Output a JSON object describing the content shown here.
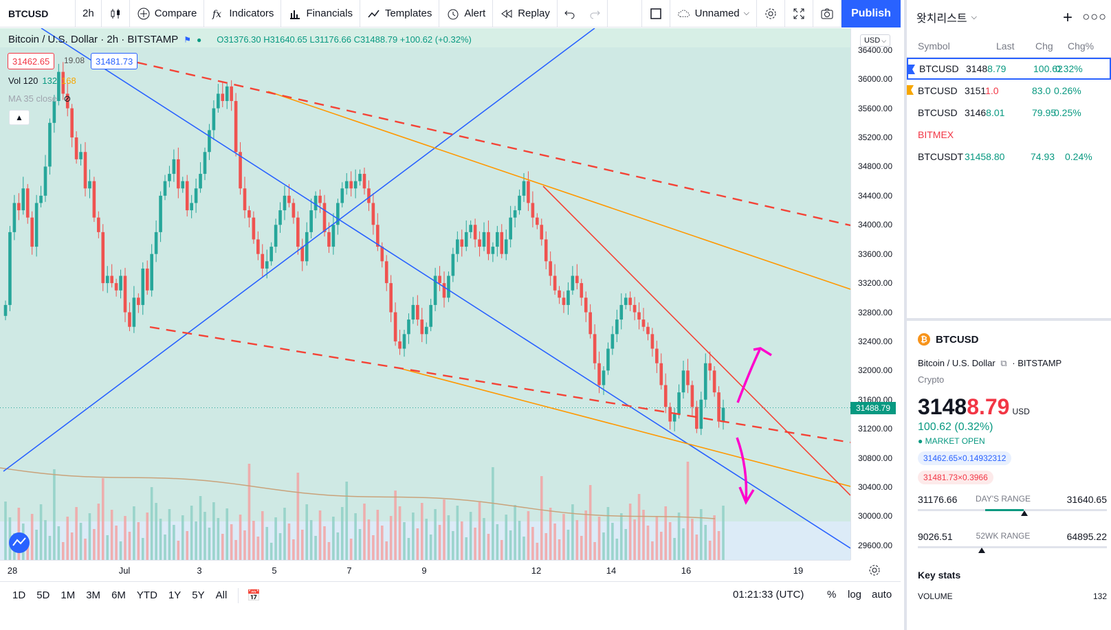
{
  "toolbar": {
    "symbol": "BTCUSD",
    "interval": "2h",
    "compare": "Compare",
    "indicators": "Indicators",
    "financials": "Financials",
    "templates": "Templates",
    "alert": "Alert",
    "replay": "Replay",
    "layout_name": "Unnamed",
    "publish": "Publish"
  },
  "legend": {
    "title": "Bitcoin / U.S. Dollar · 2h · BITSTAMP",
    "ohlc": "O31376.30 H31640.65 L31176.66 C31488.79 +100.62 (+0.32%)",
    "bid": "31462.65",
    "spread": "19.08",
    "ask": "31481.73",
    "vol_prefix": "Vol 120",
    "vol_val2": "132",
    "vol_val3": "168",
    "ma": "MA 35 close"
  },
  "price_axis": {
    "currency": "USD",
    "current_price": "31488.79",
    "ticks": [
      "36400.00",
      "36000.00",
      "35600.00",
      "35200.00",
      "34800.00",
      "34400.00",
      "34000.00",
      "33600.00",
      "33200.00",
      "32800.00",
      "32400.00",
      "32000.00",
      "31600.00",
      "31200.00",
      "30800.00",
      "30400.00",
      "30000.00",
      "29600.00"
    ]
  },
  "time_axis": {
    "ticks": [
      "28",
      "Jul",
      "3",
      "5",
      "7",
      "9",
      "12",
      "14",
      "16",
      "19"
    ]
  },
  "bottombar": {
    "ranges": [
      "1D",
      "5D",
      "1M",
      "3M",
      "6M",
      "YTD",
      "1Y",
      "5Y",
      "All"
    ],
    "clock": "01:21:33 (UTC)",
    "percent": "%",
    "log": "log",
    "auto": "auto"
  },
  "watchlist": {
    "title": "왓치리스트",
    "columns": {
      "symbol": "Symbol",
      "last": "Last",
      "chg": "Chg",
      "chgp": "Chg%"
    },
    "rows": [
      {
        "symbol": "BTCUSD",
        "last_a": "3148",
        "last_b": "8.79",
        "chg": "100.62",
        "chgp": "0.32%",
        "flag": "#2962ff"
      },
      {
        "symbol": "BTCUSD",
        "last_a": "3151",
        "last_b": "1.0",
        "chg": "83.0",
        "chgp": "0.26%",
        "flag": "#f7a600"
      },
      {
        "symbol": "BTCUSD",
        "last_a": "3146",
        "last_b": "8.01",
        "chg": "79.95",
        "chgp": "0.25%",
        "flag": ""
      }
    ],
    "section": "BITMEX",
    "row4": {
      "symbol": "BTCUSDT",
      "last": "31458.80",
      "chg": "74.93",
      "chgp": "0.24%"
    }
  },
  "detail": {
    "symbol": "BTCUSD",
    "name": "Bitcoin / U.S. Dollar",
    "exchange": "BITSTAMP",
    "type": "Crypto",
    "price_main": "3148",
    "price_dim": "8.79",
    "currency": "USD",
    "change": "100.62 (0.32%)",
    "market": "MARKET OPEN",
    "bid_chip": "31462.65×0.14932312",
    "ask_chip": "31481.73×0.3966",
    "day_low": "31176.66",
    "day_label": "DAY'S RANGE",
    "day_high": "31640.65",
    "wk_low": "9026.51",
    "wk_label": "52WK RANGE",
    "wk_high": "64895.22",
    "key_stats": "Key stats",
    "volume_label": "VOLUME",
    "volume_value": "132"
  },
  "colors": {
    "up": "#26a69a",
    "down": "#ef5350",
    "blue_line": "#2962ff",
    "orange_line": "#ff9800",
    "red_line": "#f44336",
    "arrow": "#ff00cc",
    "chart_bg": "#cfe9e4"
  },
  "chart_data": {
    "type": "candlestick",
    "note_series": "BTCUSD 2h candles, 28 Jun – 17 Jul (approximate closes)",
    "ylim": [
      29400,
      36700
    ],
    "closes": [
      32900,
      33900,
      34300,
      34200,
      34500,
      34100,
      33700,
      34300,
      34400,
      34800,
      35400,
      35700,
      36100,
      35800,
      35600,
      35200,
      34900,
      35000,
      34500,
      34600,
      34100,
      33900,
      33200,
      33300,
      33200,
      33100,
      33300,
      32800,
      32600,
      33000,
      32900,
      33400,
      33100,
      33600,
      33900,
      34400,
      34600,
      34700,
      34900,
      34500,
      34600,
      34200,
      34300,
      34500,
      34700,
      35000,
      35300,
      35600,
      35800,
      35700,
      35900,
      35700,
      35000,
      34500,
      34200,
      34100,
      33800,
      33600,
      33400,
      33500,
      33700,
      34000,
      34200,
      34400,
      34300,
      34100,
      33700,
      33500,
      33900,
      34200,
      34400,
      34300,
      33900,
      33700,
      34000,
      34300,
      34500,
      34600,
      34500,
      34600,
      34700,
      34500,
      34300,
      34000,
      33700,
      33500,
      33200,
      32800,
      32400,
      32300,
      32500,
      32700,
      32900,
      32700,
      32500,
      32600,
      32900,
      33300,
      33200,
      33000,
      33300,
      33600,
      33800,
      33700,
      33900,
      34000,
      33800,
      33700,
      33900,
      33600,
      33700,
      33900,
      33600,
      33800,
      34100,
      34200,
      34400,
      34600,
      34300,
      34100,
      34000,
      33800,
      33500,
      33300,
      33100,
      33000,
      32900,
      33100,
      33300,
      33200,
      33000,
      32800,
      32500,
      32100,
      31800,
      32000,
      32300,
      32500,
      32700,
      32900,
      33000,
      32900,
      32800,
      32700,
      32600,
      32500,
      32300,
      32100,
      31800,
      31500,
      31300,
      31400,
      31700,
      32000,
      31800,
      31500,
      31200,
      31600,
      32100,
      32000,
      31700,
      31300,
      31490
    ]
  }
}
